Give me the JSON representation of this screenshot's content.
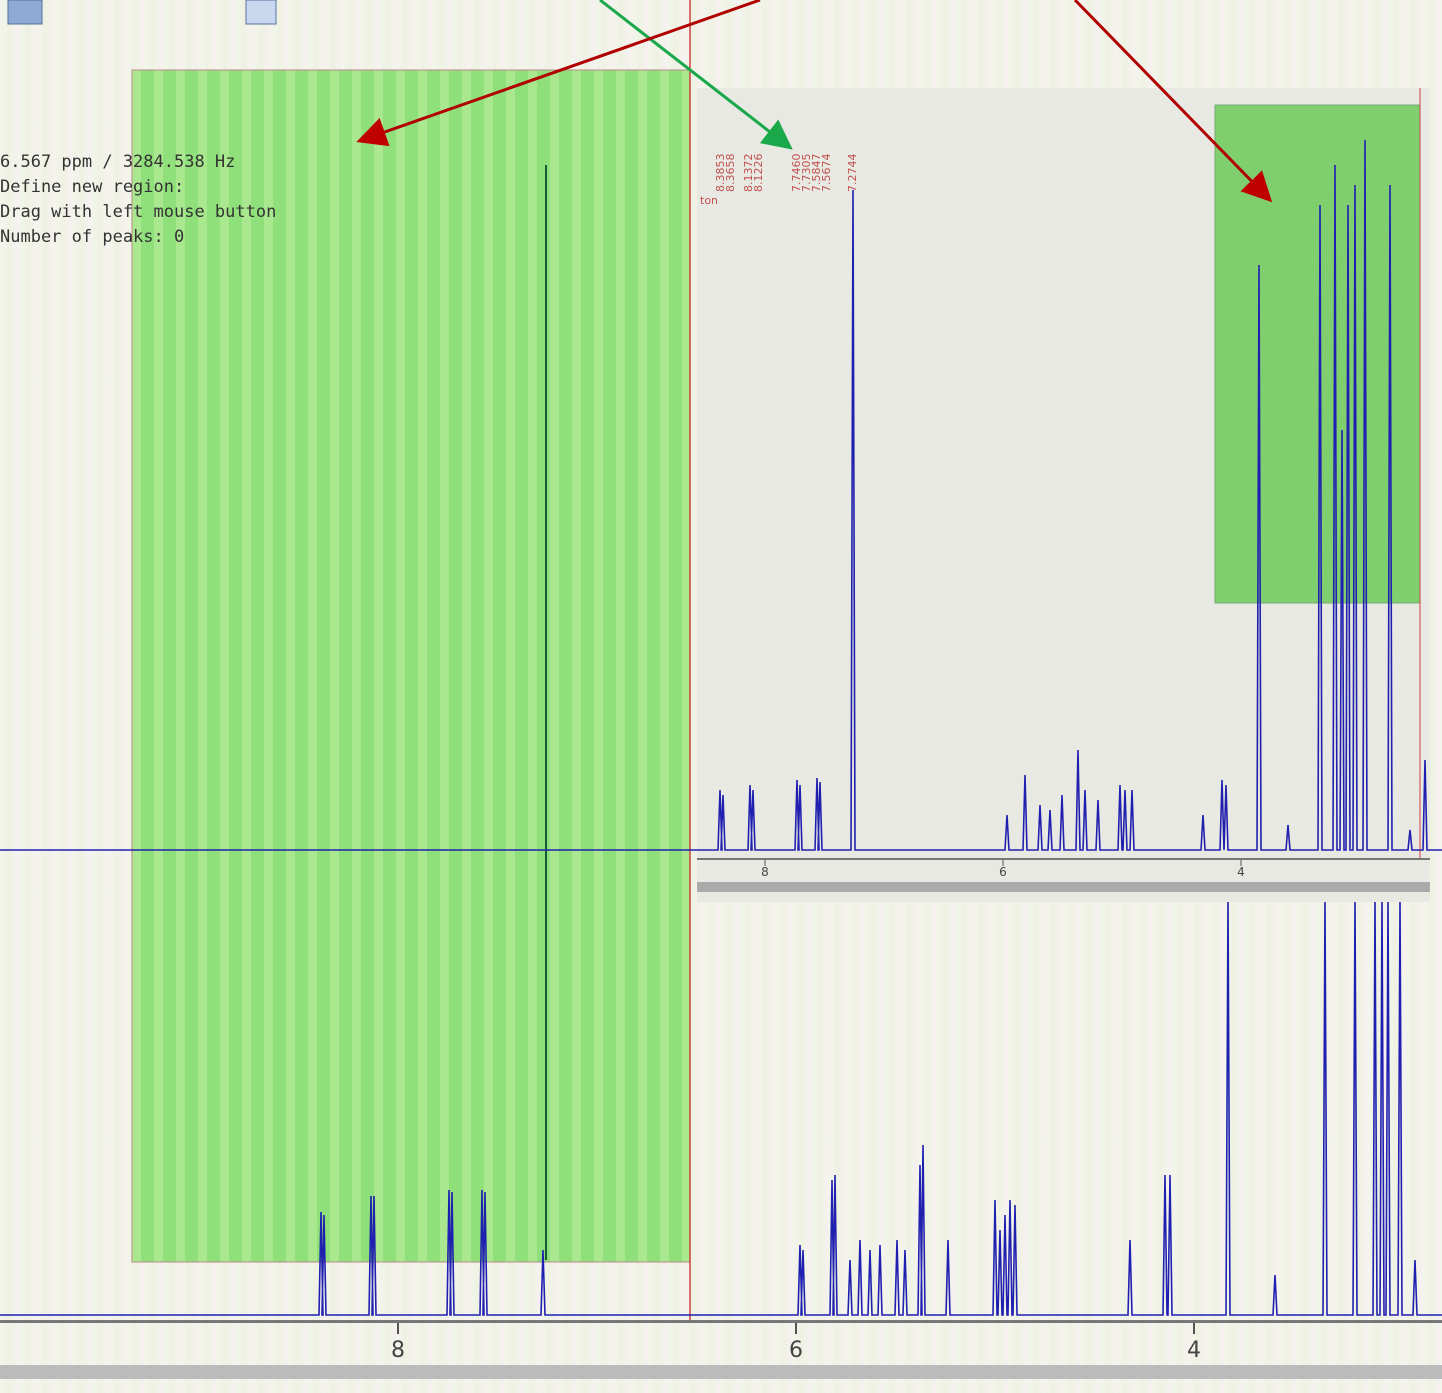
{
  "status": {
    "lines": [
      "6.567 ppm / 3284.538 Hz",
      "Define new region:",
      "Drag with left mouse button",
      "Number of peaks: 0"
    ]
  },
  "main_axis": {
    "ticks": [
      8,
      6,
      4
    ]
  },
  "inset": {
    "side_label": "ton",
    "peak_labels": [
      "8.3853",
      "8.3658",
      "8.1372",
      "8.1226",
      "7.7460",
      "7.7305",
      "7.5847",
      "7.5674",
      "7.2744"
    ],
    "axis_ticks": [
      8,
      6,
      4
    ]
  }
}
